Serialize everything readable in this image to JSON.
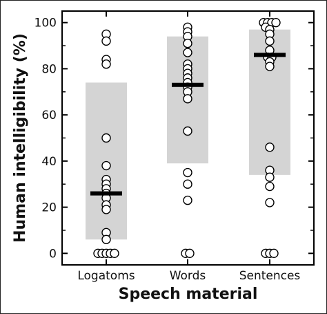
{
  "chart_data": {
    "type": "scatter",
    "xlabel": "Speech material",
    "ylabel": "Human intelligibility (%)",
    "ylim": [
      -5,
      105
    ],
    "yticks": [
      0,
      20,
      40,
      60,
      80,
      100
    ],
    "categories": [
      "Logatoms",
      "Words",
      "Sentences"
    ],
    "colors": {
      "range_box": "#d4d4d4",
      "median_bar": "#000000",
      "point_fill": "#ffffff",
      "point_stroke": "#000000"
    },
    "groups": [
      {
        "category": "Logatoms",
        "range": [
          6,
          74
        ],
        "median": 26,
        "points": [
          {
            "dx": 0,
            "y": 95
          },
          {
            "dx": 0,
            "y": 92
          },
          {
            "dx": 0,
            "y": 84
          },
          {
            "dx": 0,
            "y": 82
          },
          {
            "dx": 0,
            "y": 50
          },
          {
            "dx": 0,
            "y": 38
          },
          {
            "dx": 0,
            "y": 32
          },
          {
            "dx": 0,
            "y": 30
          },
          {
            "dx": 0,
            "y": 28
          },
          {
            "dx": 0,
            "y": 26
          },
          {
            "dx": 0,
            "y": 24
          },
          {
            "dx": 0,
            "y": 21
          },
          {
            "dx": 0,
            "y": 19
          },
          {
            "dx": 0,
            "y": 9
          },
          {
            "dx": 0,
            "y": 6
          },
          {
            "dx": -2,
            "y": 0
          },
          {
            "dx": -1,
            "y": 0
          },
          {
            "dx": 0,
            "y": 0
          },
          {
            "dx": 1,
            "y": 0
          },
          {
            "dx": 2,
            "y": 0
          }
        ]
      },
      {
        "category": "Words",
        "range": [
          39,
          94
        ],
        "median": 73,
        "points": [
          {
            "dx": 0,
            "y": 98
          },
          {
            "dx": 0,
            "y": 96
          },
          {
            "dx": 0,
            "y": 94
          },
          {
            "dx": 0,
            "y": 91
          },
          {
            "dx": 0,
            "y": 87
          },
          {
            "dx": 0,
            "y": 82
          },
          {
            "dx": 0,
            "y": 80
          },
          {
            "dx": 0,
            "y": 78
          },
          {
            "dx": 0,
            "y": 76
          },
          {
            "dx": 0,
            "y": 74
          },
          {
            "dx": 0,
            "y": 72
          },
          {
            "dx": 0,
            "y": 70
          },
          {
            "dx": 0,
            "y": 67
          },
          {
            "dx": 0,
            "y": 53
          },
          {
            "dx": 0,
            "y": 35
          },
          {
            "dx": 0,
            "y": 30
          },
          {
            "dx": 0,
            "y": 23
          },
          {
            "dx": -0.5,
            "y": 0
          },
          {
            "dx": 0.5,
            "y": 0
          }
        ]
      },
      {
        "category": "Sentences",
        "range": [
          34,
          97
        ],
        "median": 86,
        "points": [
          {
            "dx": -1.5,
            "y": 100
          },
          {
            "dx": -0.5,
            "y": 100
          },
          {
            "dx": 0.5,
            "y": 100
          },
          {
            "dx": 1.5,
            "y": 100
          },
          {
            "dx": -1,
            "y": 98
          },
          {
            "dx": 0,
            "y": 97
          },
          {
            "dx": 0,
            "y": 95
          },
          {
            "dx": 0,
            "y": 92
          },
          {
            "dx": 0,
            "y": 88
          },
          {
            "dx": -0.5,
            "y": 85
          },
          {
            "dx": 0.5,
            "y": 85
          },
          {
            "dx": 0,
            "y": 83
          },
          {
            "dx": 0,
            "y": 81
          },
          {
            "dx": 0,
            "y": 46
          },
          {
            "dx": 0,
            "y": 36
          },
          {
            "dx": 0,
            "y": 33
          },
          {
            "dx": 0,
            "y": 29
          },
          {
            "dx": 0,
            "y": 22
          },
          {
            "dx": -1,
            "y": 0
          },
          {
            "dx": 0,
            "y": 0
          },
          {
            "dx": 1,
            "y": 0
          }
        ]
      }
    ]
  }
}
